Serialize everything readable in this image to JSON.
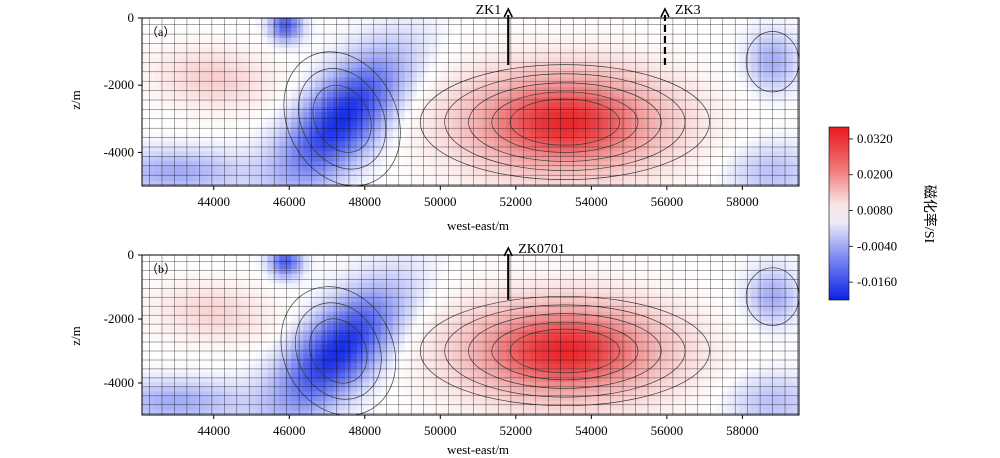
{
  "colors": {
    "negative_max": "#0a22e6",
    "negative_mid": "#7f8cf2",
    "neutral": "#ffffff",
    "positive_mid": "#f2a0a0",
    "positive_max": "#e8181e",
    "contour": "#3a3a3a",
    "grid": "#000000"
  },
  "colorbar": {
    "label": "磁化率/SI",
    "ticks": [
      "0.0320",
      "0.0200",
      "0.0080",
      "-0.0040",
      "-0.0160"
    ],
    "tick_values": [
      0.032,
      0.02,
      0.008,
      -0.004,
      -0.016
    ],
    "range": [
      -0.022,
      0.036
    ]
  },
  "chart_data": [
    {
      "type": "heatmap",
      "panel_label": "（a）",
      "xlabel": "west-east/m",
      "ylabel": "z/m",
      "xlim": [
        42100,
        59500
      ],
      "ylim": [
        -5000,
        0
      ],
      "x_ticks": [
        "44000",
        "46000",
        "48000",
        "50000",
        "52000",
        "54000",
        "56000",
        "58000"
      ],
      "x_tick_values": [
        44000,
        46000,
        48000,
        50000,
        52000,
        54000,
        56000,
        58000
      ],
      "y_ticks": [
        "0",
        "-2000",
        "-4000"
      ],
      "y_tick_values": [
        0,
        -2000,
        -4000
      ],
      "anomalies": [
        {
          "sign": "negative",
          "x": 47400,
          "z": -3000,
          "peak": -0.021
        },
        {
          "sign": "positive",
          "x": 53300,
          "z": -3100,
          "peak": 0.034
        },
        {
          "sign": "positive",
          "x": 44000,
          "z": -1800,
          "peak": 0.009
        },
        {
          "sign": "negative",
          "x": 58800,
          "z": -1300,
          "peak": -0.008
        }
      ],
      "boreholes": [
        {
          "label": "ZK1",
          "x": 51800,
          "z_bottom": -1400,
          "style": "solid"
        },
        {
          "label": "ZK3",
          "x": 55950,
          "z_bottom": -1400,
          "style": "dashed"
        }
      ]
    },
    {
      "type": "heatmap",
      "panel_label": "（b）",
      "xlabel": "west-east/m",
      "ylabel": "z/m",
      "xlim": [
        42100,
        59500
      ],
      "ylim": [
        -5000,
        0
      ],
      "x_ticks": [
        "44000",
        "46000",
        "48000",
        "50000",
        "52000",
        "54000",
        "56000",
        "58000"
      ],
      "x_tick_values": [
        44000,
        46000,
        48000,
        50000,
        52000,
        54000,
        56000,
        58000
      ],
      "y_ticks": [
        "0",
        "-2000",
        "-4000"
      ],
      "y_tick_values": [
        0,
        -2000,
        -4000
      ],
      "anomalies": [
        {
          "sign": "negative",
          "x": 47300,
          "z": -3000,
          "peak": -0.021
        },
        {
          "sign": "positive",
          "x": 53300,
          "z": -3000,
          "peak": 0.034
        },
        {
          "sign": "positive",
          "x": 44000,
          "z": -1800,
          "peak": 0.008
        },
        {
          "sign": "negative",
          "x": 58800,
          "z": -1300,
          "peak": -0.008
        }
      ],
      "boreholes": [
        {
          "label": "ZK0701",
          "x": 51800,
          "z_bottom": -1400,
          "style": "solid"
        }
      ]
    }
  ]
}
